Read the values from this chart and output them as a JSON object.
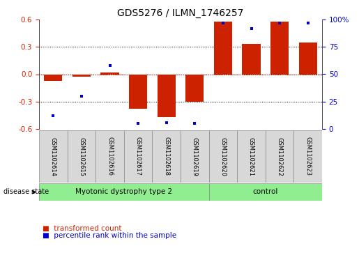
{
  "title": "GDS5276 / ILMN_1746257",
  "samples": [
    "GSM1102614",
    "GSM1102615",
    "GSM1102616",
    "GSM1102617",
    "GSM1102618",
    "GSM1102619",
    "GSM1102620",
    "GSM1102621",
    "GSM1102622",
    "GSM1102623"
  ],
  "transformed_count": [
    -0.07,
    -0.03,
    0.02,
    -0.38,
    -0.47,
    -0.3,
    0.58,
    0.33,
    0.58,
    0.35
  ],
  "percentile_rank": [
    12,
    30,
    58,
    5,
    6,
    5,
    97,
    92,
    97,
    97
  ],
  "ylim_left": [
    -0.6,
    0.6
  ],
  "ylim_right": [
    0,
    100
  ],
  "yticks_left": [
    -0.6,
    -0.3,
    0.0,
    0.3,
    0.6
  ],
  "yticks_right": [
    0,
    25,
    50,
    75,
    100
  ],
  "ytick_labels_right": [
    "0",
    "25",
    "50",
    "75",
    "100%"
  ],
  "groups": [
    {
      "label": "Myotonic dystrophy type 2",
      "start": 0,
      "end": 6,
      "color": "#90EE90"
    },
    {
      "label": "control",
      "start": 6,
      "end": 10,
      "color": "#90EE90"
    }
  ],
  "disease_state_label": "disease state",
  "bar_color": "#CC2200",
  "dot_color": "#0000CC",
  "legend": [
    {
      "label": "transformed count",
      "color": "#CC2200"
    },
    {
      "label": "percentile rank within the sample",
      "color": "#0000CC"
    }
  ],
  "hline_color": "#CC2200",
  "bg_color": "#d8d8d8",
  "figsize": [
    5.15,
    3.63
  ],
  "dpi": 100
}
